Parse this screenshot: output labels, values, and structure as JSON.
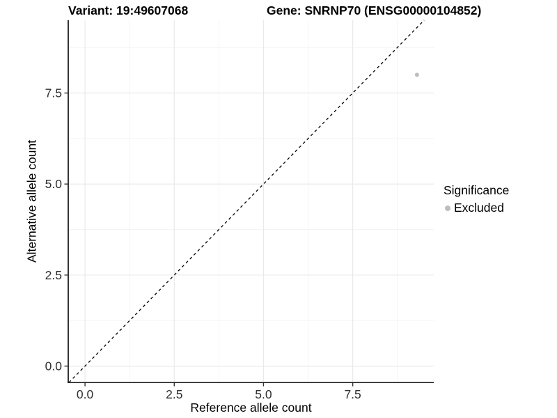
{
  "header": {
    "variant_title": "Variant: 19:49607068",
    "gene_title": "Gene: SNRNP70 (ENSG00000104852)"
  },
  "chart_data": {
    "type": "scatter",
    "xlabel": "Reference allele count",
    "ylabel": "Alternative allele count",
    "x_ticks": [
      0.0,
      2.5,
      5.0,
      7.5
    ],
    "y_ticks": [
      0.0,
      2.5,
      5.0,
      7.5
    ],
    "x_tick_labels": [
      "0.0",
      "2.5",
      "5.0",
      "7.5"
    ],
    "y_tick_labels": [
      "0.0",
      "2.5",
      "5.0",
      "7.5"
    ],
    "x_minor_ticks": [
      1.25,
      3.75,
      6.25,
      8.75
    ],
    "y_minor_ticks": [
      1.25,
      3.75,
      6.25,
      8.75
    ],
    "xlim": [
      -0.47,
      9.77
    ],
    "ylim": [
      -0.45,
      9.5
    ],
    "grid": true,
    "identity_line": {
      "slope": 1,
      "intercept": 0,
      "dashed": true
    },
    "series": [
      {
        "name": "Excluded",
        "color": "#bdbdbd",
        "points": [
          {
            "x": 9.3,
            "y": 8.0
          }
        ]
      }
    ],
    "legend": {
      "title": "Significance",
      "position": "right",
      "entries": [
        {
          "label": "Excluded",
          "color": "#bdbdbd"
        }
      ]
    },
    "colors": {
      "grid_major": "#e9e9e9",
      "grid_minor": "#f4f4f4",
      "axis_line": "#000000",
      "tick_mark": "#333333",
      "tick_label": "#303030",
      "identity_line": "#000000",
      "background": "#ffffff"
    }
  }
}
